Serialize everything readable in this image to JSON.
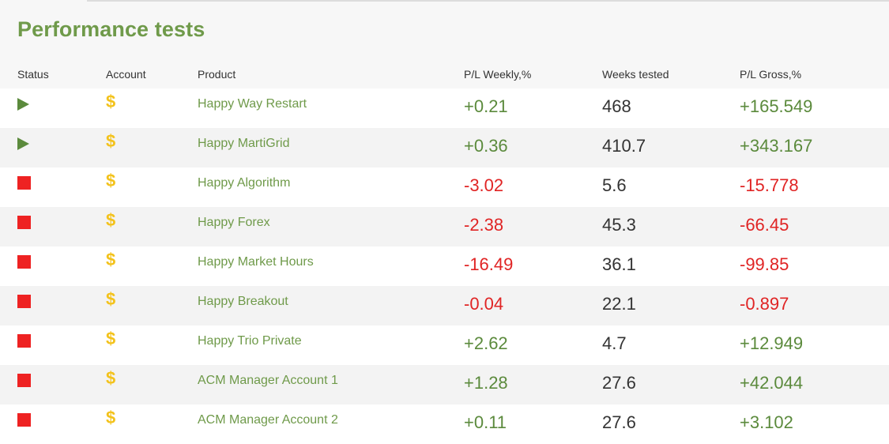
{
  "page": {
    "title": "Performance tests"
  },
  "table": {
    "headers": {
      "status": "Status",
      "account": "Account",
      "product": "Product",
      "pl_weekly": "P/L Weekly,%",
      "weeks_tested": "Weeks tested",
      "pl_gross": "P/L Gross,%"
    },
    "rows": [
      {
        "status": "running",
        "account_icon": "$",
        "product": "Happy Way Restart",
        "pl_weekly": "+0.21",
        "weeks_tested": "468",
        "pl_gross": "+165.549"
      },
      {
        "status": "running",
        "account_icon": "$",
        "product": "Happy MartiGrid",
        "pl_weekly": "+0.36",
        "weeks_tested": "410.7",
        "pl_gross": "+343.167"
      },
      {
        "status": "stopped",
        "account_icon": "$",
        "product": "Happy Algorithm",
        "pl_weekly": "-3.02",
        "weeks_tested": "5.6",
        "pl_gross": "-15.778"
      },
      {
        "status": "stopped",
        "account_icon": "$",
        "product": "Happy Forex",
        "pl_weekly": "-2.38",
        "weeks_tested": "45.3",
        "pl_gross": "-66.45"
      },
      {
        "status": "stopped",
        "account_icon": "$",
        "product": "Happy Market Hours",
        "pl_weekly": "-16.49",
        "weeks_tested": "36.1",
        "pl_gross": "-99.85"
      },
      {
        "status": "stopped",
        "account_icon": "$",
        "product": "Happy Breakout",
        "pl_weekly": "-0.04",
        "weeks_tested": "22.1",
        "pl_gross": "-0.897"
      },
      {
        "status": "stopped",
        "account_icon": "$",
        "product": "Happy Trio Private",
        "pl_weekly": "+2.62",
        "weeks_tested": "4.7",
        "pl_gross": "+12.949"
      },
      {
        "status": "stopped",
        "account_icon": "$",
        "product": "ACM Manager Account 1",
        "pl_weekly": "+1.28",
        "weeks_tested": "27.6",
        "pl_gross": "+42.044"
      },
      {
        "status": "stopped",
        "account_icon": "$",
        "product": "ACM Manager Account 2",
        "pl_weekly": "+0.11",
        "weeks_tested": "27.6",
        "pl_gross": "+3.102"
      }
    ]
  },
  "colors": {
    "title": "#6f9a4a",
    "positive": "#5b8a3c",
    "negative": "#e02424",
    "stopped": "#ee2222",
    "running": "#5b8a3c",
    "account_icon": "#f3c21b"
  },
  "icons": {
    "running": "play-icon",
    "stopped": "stop-icon",
    "account": "dollar-icon"
  }
}
